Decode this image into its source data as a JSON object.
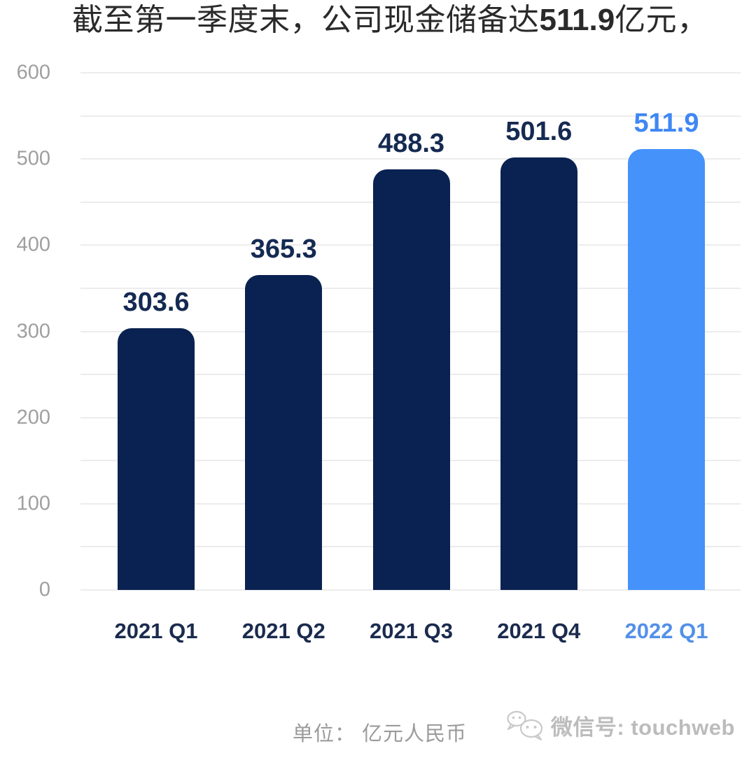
{
  "title": {
    "prefix": "截至第一季度末，公司现金储备达",
    "highlight": "511.9",
    "suffix": "亿元，"
  },
  "chart_data": {
    "type": "bar",
    "title": "截至第一季度末，公司现金储备达511.9亿元，",
    "categories": [
      "2021 Q1",
      "2021 Q2",
      "2021 Q3",
      "2021 Q4",
      "2022 Q1"
    ],
    "values": [
      303.6,
      365.3,
      488.3,
      501.6,
      511.9
    ],
    "value_labels": [
      "303.6",
      "365.3",
      "488.3",
      "501.6",
      "511.9"
    ],
    "unit": "亿元人民币",
    "xlabel": "",
    "ylabel": "",
    "ylim": [
      0,
      600
    ],
    "yticks": [
      0,
      100,
      200,
      300,
      400,
      500,
      600
    ],
    "grid_step": 50,
    "grid": true,
    "legend_position": "none",
    "highlight_index": 4,
    "colors": {
      "bar": "#0a2251",
      "bar_highlight": "#4592fb",
      "value_label": "#152a52",
      "value_label_highlight": "#3f87f4",
      "category_label": "#1b2b4e",
      "category_label_highlight": "#5390e8",
      "gridline": "#ececec",
      "ytick": "#9f9f9f",
      "title": "#2a2a2a"
    }
  },
  "footer": {
    "unit_label": "单位： 亿元人民币",
    "wechat_icon": "wechat-bubbles-icon",
    "wechat_label": "微信号: touchweb"
  }
}
